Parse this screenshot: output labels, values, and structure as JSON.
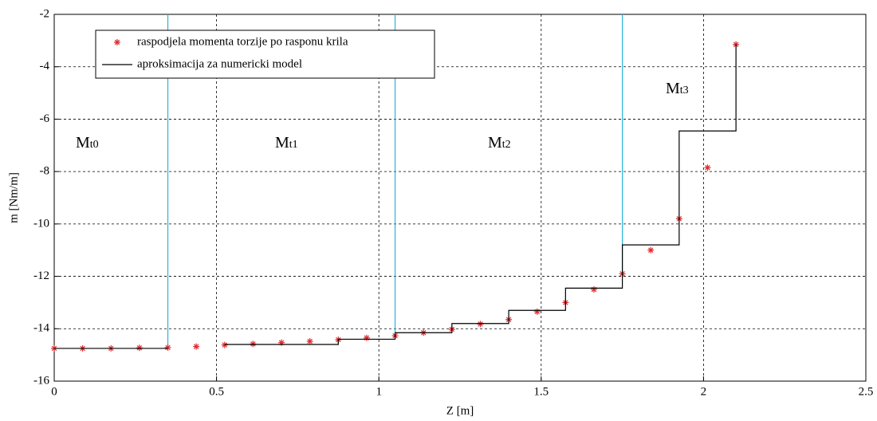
{
  "chart_data": {
    "type": "scatter-step",
    "xlabel": "Z [m]",
    "ylabel": "m [Nm/m]",
    "xlim": [
      0,
      2.5
    ],
    "ylim": [
      -16,
      -2
    ],
    "xticks": [
      0,
      0.5,
      1,
      1.5,
      2,
      2.5
    ],
    "yticks": [
      -2,
      -4,
      -6,
      -8,
      -10,
      -12,
      -14,
      -16
    ],
    "grid": true,
    "legend": "upper left",
    "series": [
      {
        "name": "raspodjela momenta torzije po rasponu krila",
        "kind": "points",
        "color": "#e0282c",
        "x": [
          0,
          0.0875,
          0.175,
          0.2625,
          0.35,
          0.4375,
          0.525,
          0.6125,
          0.7,
          0.7875,
          0.875,
          0.9625,
          1.05,
          1.1375,
          1.225,
          1.3125,
          1.4,
          1.4875,
          1.575,
          1.6625,
          1.75,
          1.8375,
          1.925,
          2.0125,
          2.1
        ],
        "values": [
          -14.75,
          -14.75,
          -14.75,
          -14.73,
          -14.72,
          -14.68,
          -14.62,
          -14.58,
          -14.53,
          -14.48,
          -14.42,
          -14.35,
          -14.27,
          -14.15,
          -14.02,
          -13.82,
          -13.65,
          -13.35,
          -13.0,
          -12.5,
          -11.9,
          -11.0,
          -9.8,
          -7.85,
          -3.15
        ]
      },
      {
        "name": "aproksimacija za numericki model",
        "kind": "line",
        "color": "#000000",
        "x": [
          0,
          0.35,
          0.44,
          0.525,
          0.875,
          0.875,
          1.05,
          1.05,
          1.225,
          1.225,
          1.4,
          1.4,
          1.575,
          1.575,
          1.75,
          1.75,
          1.925,
          1.925,
          2.1,
          2.1
        ],
        "values": [
          -14.75,
          -14.75,
          null,
          -14.6,
          -14.6,
          -14.4,
          -14.4,
          -14.15,
          -14.15,
          -13.8,
          -13.8,
          -13.3,
          -13.3,
          -12.45,
          -12.45,
          -10.8,
          -10.8,
          -6.45,
          -6.45,
          -3.15
        ]
      }
    ],
    "dividers": [
      {
        "color": "#29b6d6",
        "x": [
          0.35,
          0.35
        ],
        "values": [
          -2,
          -14.72
        ]
      },
      {
        "color": "#29b6d6",
        "x": [
          1.05,
          1.05
        ],
        "values": [
          -2,
          -14.27
        ]
      },
      {
        "color": "#29b6d6",
        "x": [
          1.75,
          1.75
        ],
        "values": [
          -2,
          -11.9
        ]
      }
    ],
    "annotations": [
      {
        "text": "M",
        "sub": "t0"
      },
      {
        "text": "M",
        "sub": "t1"
      },
      {
        "text": "M",
        "sub": "t2"
      },
      {
        "text": "M",
        "sub": "t3"
      }
    ]
  }
}
